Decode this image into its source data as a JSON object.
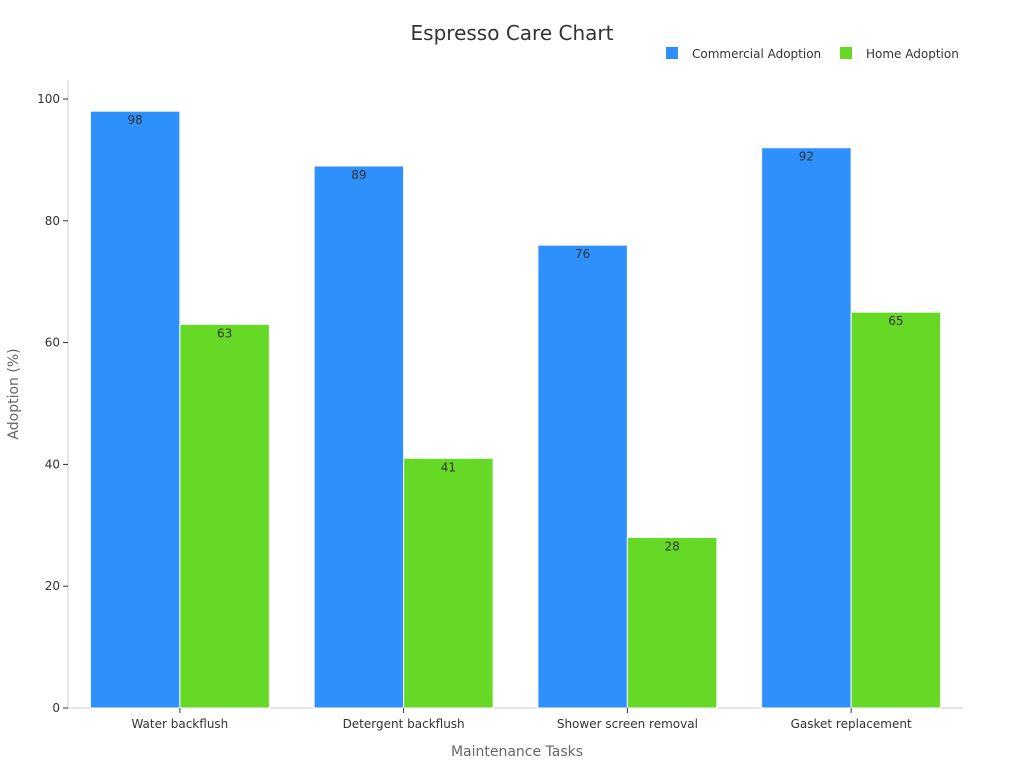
{
  "chart_data": {
    "type": "bar",
    "title": "Espresso Care Chart",
    "xlabel": "Maintenance Tasks",
    "ylabel": "Adoption (%)",
    "categories": [
      "Water backflush",
      "Detergent backflush",
      "Shower screen removal",
      "Gasket replacement"
    ],
    "series": [
      {
        "name": "Commercial Adoption",
        "color": "#2e90fa",
        "values": [
          98,
          89,
          76,
          92
        ]
      },
      {
        "name": "Home Adoption",
        "color": "#66d926",
        "values": [
          63,
          41,
          28,
          65
        ]
      }
    ],
    "ylim": [
      0,
      100
    ],
    "yticks": [
      0,
      20,
      40,
      60,
      80,
      100
    ],
    "grid": false,
    "legend_position": "top-right"
  }
}
